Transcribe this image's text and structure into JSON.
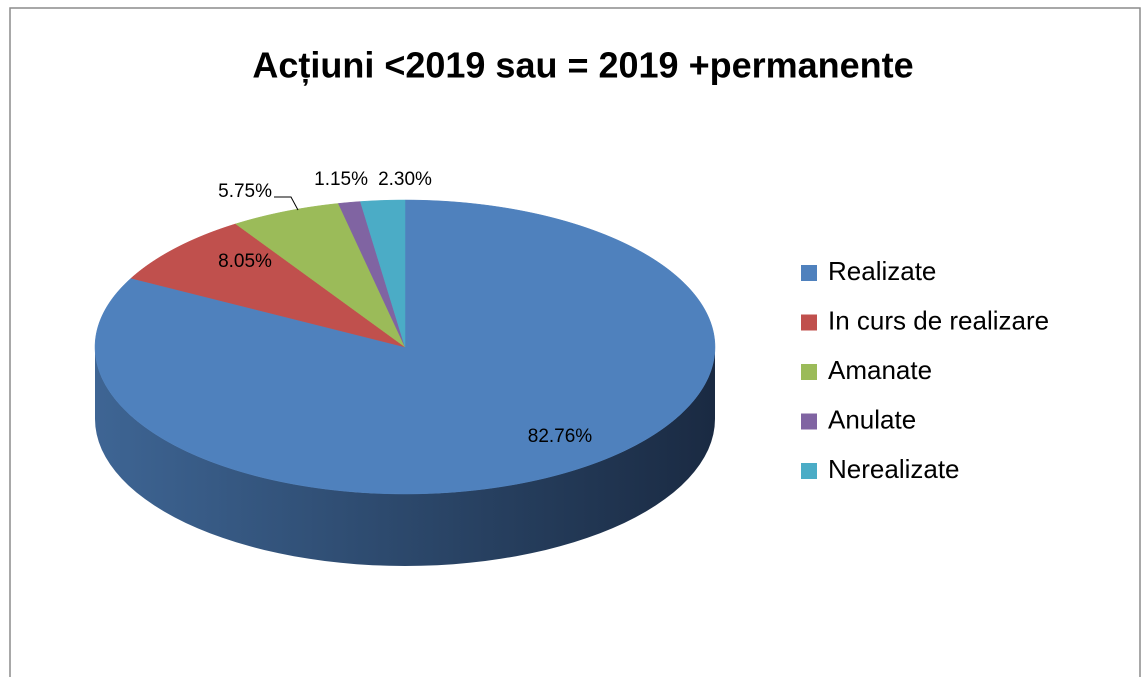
{
  "chart_data": {
    "type": "pie",
    "title": "Acțiuni <2019 sau = 2019 +permanente",
    "categories": [
      "Realizate",
      "In curs de realizare",
      "Amanate",
      "Anulate",
      "Nerealizate"
    ],
    "values": [
      82.76,
      8.05,
      5.75,
      1.15,
      2.3
    ],
    "value_labels": [
      "82.76%",
      "8.05%",
      "5.75%",
      "1.15%",
      "2.30%"
    ],
    "colors": [
      "#4f81bd",
      "#c0504d",
      "#9bbb59",
      "#8064a2",
      "#4bacc6"
    ],
    "legend": "right"
  }
}
